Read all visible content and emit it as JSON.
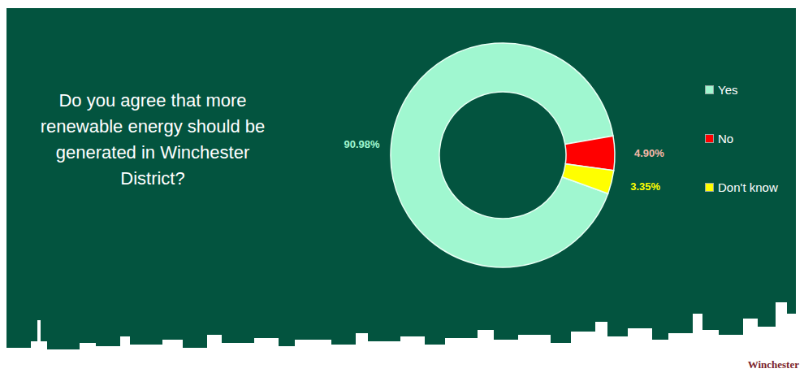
{
  "chart_data": {
    "type": "pie",
    "title": "Do you agree that more renewable energy should be generated in Winchester District?",
    "categories": [
      "Yes",
      "No",
      "Don't know"
    ],
    "values": [
      90.98,
      4.9,
      3.35
    ],
    "value_labels": [
      "90.98%",
      "4.90%",
      "3.35%"
    ],
    "colors": [
      "#a0f7d0",
      "#ff0000",
      "#ffff00"
    ],
    "data_labels": true,
    "legend": "right"
  },
  "logo": "Winchester"
}
